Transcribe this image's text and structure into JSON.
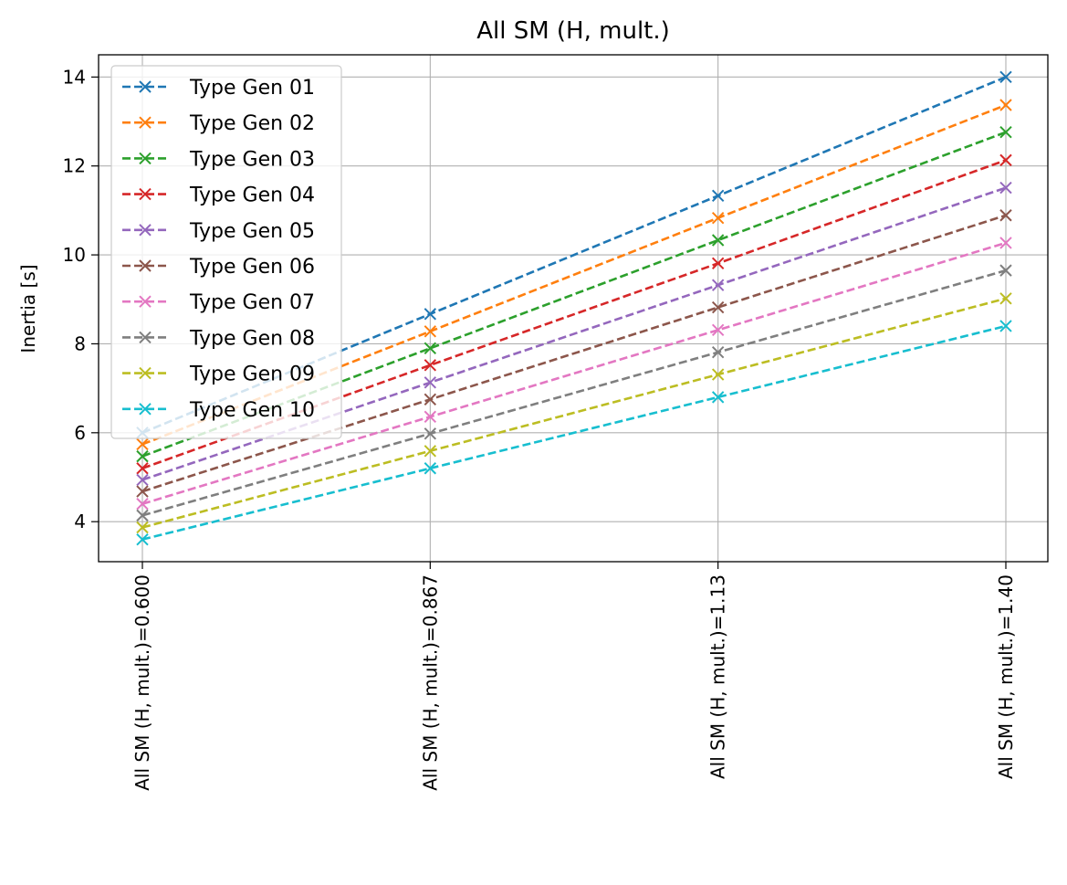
{
  "chart_data": {
    "type": "line",
    "title": "All SM (H, mult.)",
    "xlabel": "",
    "ylabel": "Inertia [s]",
    "categories": [
      "All SM (H, mult.)=0.600",
      "All SM (H, mult.)=0.867",
      "All SM (H, mult.)=1.13",
      "All SM (H, mult.)=1.40"
    ],
    "ylim": [
      3.1,
      14.5
    ],
    "yticks": [
      4,
      6,
      8,
      10,
      12,
      14
    ],
    "grid": true,
    "legend_position": "upper-left",
    "line_style": "dashed",
    "marker": "x",
    "series": [
      {
        "name": "Type Gen 01",
        "color": "#1f77b4",
        "values": [
          6.0,
          8.67,
          11.33,
          14.0
        ]
      },
      {
        "name": "Type Gen 02",
        "color": "#ff7f0e",
        "values": [
          5.74,
          8.28,
          10.83,
          13.37
        ]
      },
      {
        "name": "Type Gen 03",
        "color": "#2ca02c",
        "values": [
          5.47,
          7.9,
          10.33,
          12.76
        ]
      },
      {
        "name": "Type Gen 04",
        "color": "#d62728",
        "values": [
          5.2,
          7.52,
          9.81,
          12.13
        ]
      },
      {
        "name": "Type Gen 05",
        "color": "#9467bd",
        "values": [
          4.94,
          7.13,
          9.32,
          11.51
        ]
      },
      {
        "name": "Type Gen 06",
        "color": "#8c564b",
        "values": [
          4.68,
          6.75,
          8.82,
          10.89
        ]
      },
      {
        "name": "Type Gen 07",
        "color": "#e377c2",
        "values": [
          4.4,
          6.36,
          8.31,
          10.27
        ]
      },
      {
        "name": "Type Gen 08",
        "color": "#7f7f7f",
        "values": [
          4.14,
          5.98,
          7.81,
          9.65
        ]
      },
      {
        "name": "Type Gen 09",
        "color": "#bcbd22",
        "values": [
          3.87,
          5.59,
          7.31,
          9.02
        ]
      },
      {
        "name": "Type Gen 10",
        "color": "#17becf",
        "values": [
          3.6,
          5.2,
          6.8,
          8.4
        ]
      }
    ]
  }
}
